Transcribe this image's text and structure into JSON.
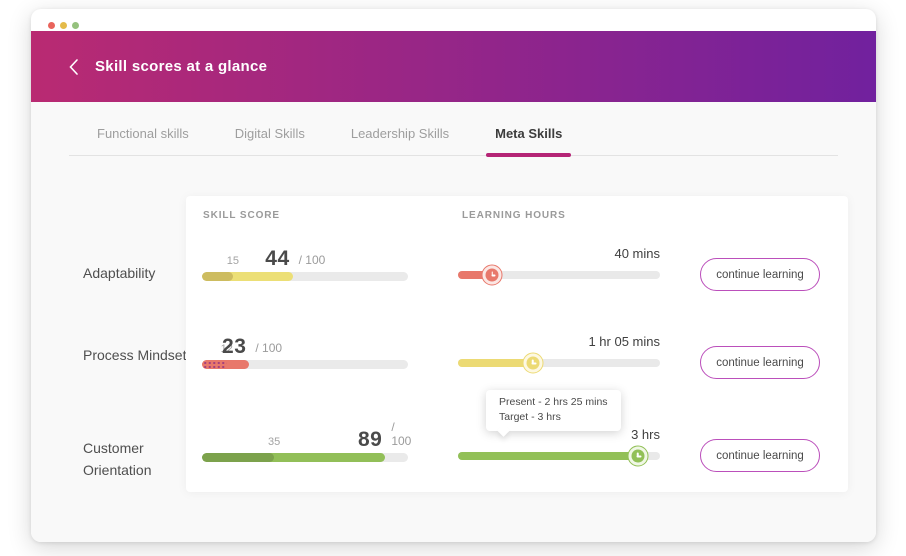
{
  "window": {
    "title": "Skill scores at a glance",
    "traffic_lights": [
      "#e9645c",
      "#e4bb4a",
      "#95c17d"
    ],
    "header_gradient": [
      "#b92a72",
      "#71219e"
    ]
  },
  "accent": {
    "tab_underline": "#b52576",
    "button_border": "#bb4fbb"
  },
  "tabs": [
    {
      "label": "Functional skills",
      "active": false
    },
    {
      "label": "Digital Skills",
      "active": false
    },
    {
      "label": "Leadership Skills",
      "active": false
    },
    {
      "label": "Meta Skills",
      "active": true
    }
  ],
  "columns": {
    "skill_score": "SKILL SCORE",
    "learning_hours": "LEARNING HOURS"
  },
  "skills": [
    {
      "name": "Adaptability",
      "score": {
        "previous": "15",
        "current": "44",
        "max_label": "/ 100",
        "prev_pct": 15,
        "curr_pct": 44,
        "color_prev": "#cdbc60",
        "color_curr": "#ecdf76",
        "hatch_dots": null
      },
      "learning": {
        "time_label": "40 mins",
        "progress_pct": 17,
        "color": "#e8786b",
        "knob_ring": "#fbe7e4"
      },
      "button_label": "continue learning"
    },
    {
      "name": "Process Mindset",
      "score": {
        "previous": "12",
        "current": "23",
        "max_label": "/ 100",
        "prev_pct": 12,
        "curr_pct": 23,
        "color_prev": "#e8786b",
        "color_curr": "#e8786b",
        "hatch_dots": "#a6417c"
      },
      "learning": {
        "time_label": "1 hr 05 mins",
        "progress_pct": 37,
        "color": "#ecda74",
        "knob_ring": "#fdf8e2"
      },
      "button_label": "continue learning"
    },
    {
      "name": "Customer Orientation",
      "score": {
        "previous": "35",
        "current": "89",
        "max_label": "/ 100",
        "prev_pct": 35,
        "curr_pct": 89,
        "color_prev": "#7ca24c",
        "color_curr": "#92bf58",
        "hatch_dots": null
      },
      "learning": {
        "time_label": "3 hrs",
        "progress_pct": 89,
        "color": "#92c057",
        "knob_ring": "#f0f7e6"
      },
      "tooltip": {
        "lines": [
          "Present - 2 hrs 25 mins",
          "Target - 3 hrs"
        ]
      },
      "button_label": "continue learning"
    }
  ]
}
